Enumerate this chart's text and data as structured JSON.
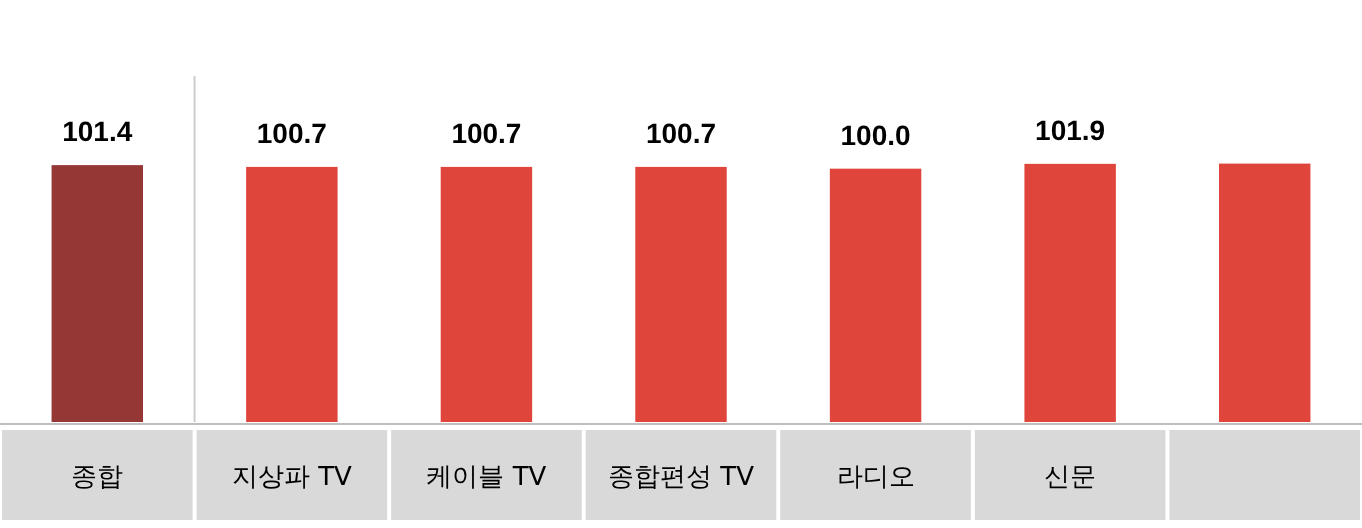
{
  "chart_data": {
    "type": "bar",
    "categories": [
      "종합",
      "지상파 TV",
      "케이블 TV",
      "종합편성 TV",
      "라디오",
      "신문",
      null
    ],
    "values": [
      101.4,
      100.7,
      100.7,
      100.7,
      100.0,
      101.9,
      102.0
    ],
    "colors": [
      "#953735",
      "#e0453b",
      "#e0453b",
      "#e0453b",
      "#e0453b",
      "#e0453b",
      "#e0453b"
    ],
    "value_labels": [
      "101.4",
      "100.7",
      "100.7",
      "100.7",
      "100.0",
      "101.9",
      null
    ],
    "ylim": [
      0,
      135
    ]
  }
}
